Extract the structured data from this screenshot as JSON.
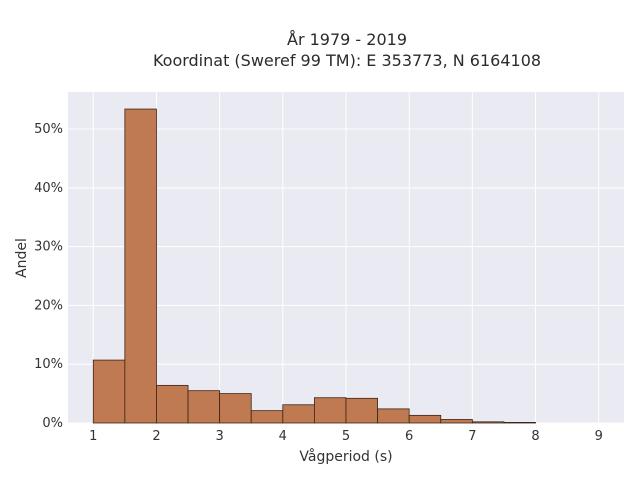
{
  "chart_data": {
    "type": "bar",
    "title_lines": [
      "År 1979 - 2019",
      "Koordinat (Sweref 99 TM): E 353773, N 6164108"
    ],
    "xlabel": "Vågperiod (s)",
    "ylabel": "Andel",
    "bin_edges": [
      1.0,
      1.5,
      2.0,
      2.5,
      3.0,
      3.5,
      4.0,
      4.5,
      5.0,
      5.5,
      6.0,
      6.5,
      7.0,
      7.5,
      8.0
    ],
    "values": [
      10.7,
      53.4,
      6.4,
      5.5,
      5.0,
      2.1,
      3.1,
      4.3,
      4.2,
      2.4,
      1.3,
      0.6,
      0.2,
      0.1
    ],
    "xlim": [
      0.6,
      9.4
    ],
    "ylim": [
      0,
      56.3
    ],
    "x_ticks": [
      1,
      2,
      3,
      4,
      5,
      6,
      7,
      8,
      9
    ],
    "x_tick_labels": [
      "1",
      "2",
      "3",
      "4",
      "5",
      "6",
      "7",
      "8",
      "9"
    ],
    "y_ticks": [
      0,
      10,
      20,
      30,
      40,
      50
    ],
    "y_tick_labels": [
      "0%",
      "10%",
      "20%",
      "30%",
      "40%",
      "50%"
    ],
    "grid": true,
    "colors": {
      "bar": "#c07a52",
      "bar_edge": "#3a2418",
      "plot_bg": "#eaeaf2",
      "grid": "#ffffff"
    }
  }
}
